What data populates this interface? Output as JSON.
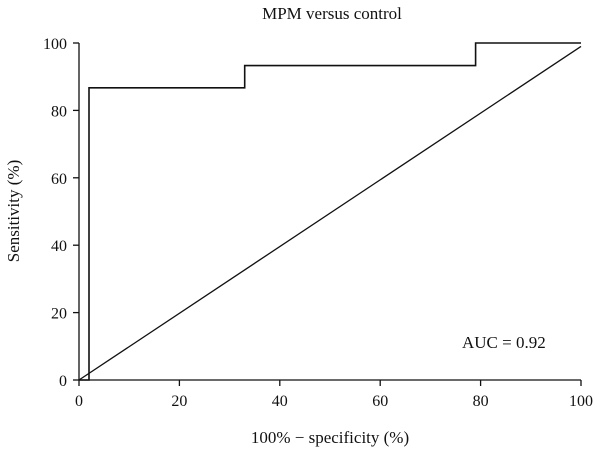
{
  "chart_data": {
    "type": "line",
    "title": "MPM versus control",
    "xlabel": "100% − specificity (%)",
    "ylabel": "Sensitivity (%)",
    "xlim": [
      0,
      100
    ],
    "ylim": [
      0,
      100
    ],
    "xticks": [
      "0",
      "20",
      "40",
      "60",
      "80",
      "100"
    ],
    "yticks": [
      "0",
      "20",
      "40",
      "60",
      "80",
      "100"
    ],
    "grid": false,
    "series": [
      {
        "style": "step",
        "x": [
          0,
          2,
          2,
          2,
          2,
          33,
          33,
          79,
          79,
          100
        ],
        "y": [
          0,
          0,
          60,
          60,
          86.7,
          86.7,
          93.3,
          93.3,
          100,
          100
        ]
      },
      {
        "style": "reference-diagonal",
        "x": [
          0,
          100
        ],
        "y": [
          0,
          99
        ]
      }
    ],
    "annotations": [
      {
        "text": "AUC = 0.92"
      }
    ]
  }
}
